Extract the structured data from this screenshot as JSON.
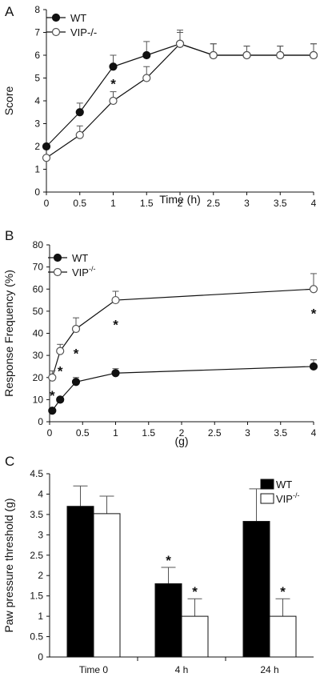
{
  "chart_data": [
    {
      "panel": "A",
      "type": "line",
      "xlabel": "Time (h)",
      "ylabel": "Score",
      "xlim": [
        0,
        4
      ],
      "ylim": [
        0,
        8
      ],
      "x_ticks": [
        "0",
        "0.5",
        "1",
        "1.5",
        "2",
        "2.5",
        "3",
        "3.5",
        "4"
      ],
      "y_ticks": [
        "0",
        "1",
        "2",
        "3",
        "4",
        "5",
        "6",
        "7",
        "8"
      ],
      "legend_position": "top-left",
      "x": [
        0,
        0.5,
        1,
        1.5,
        2,
        2.5,
        3,
        3.5,
        4
      ],
      "series": [
        {
          "name": "WT",
          "marker": "filled-circle",
          "values": [
            2.0,
            3.5,
            5.5,
            6.0,
            6.5,
            6.0,
            6.0,
            6.0,
            6.0
          ],
          "error": [
            0,
            0.4,
            0.5,
            0.6,
            0.6,
            0.5,
            0.4,
            0.4,
            0.5
          ]
        },
        {
          "name": "VIP-/-",
          "marker": "open-circle",
          "values": [
            1.5,
            2.5,
            4.0,
            5.0,
            6.5,
            6.0,
            6.0,
            6.0,
            6.0
          ],
          "error": [
            0,
            0.4,
            0.4,
            0.5,
            0.5,
            0.5,
            0.4,
            0.4,
            0.5
          ]
        }
      ],
      "annotations": [
        {
          "text": "*",
          "x": 1,
          "y": 4.75
        }
      ]
    },
    {
      "panel": "B",
      "type": "line",
      "xlabel": "(g)",
      "ylabel": "Response Frequency (%)",
      "xlim": [
        0,
        4
      ],
      "ylim": [
        0,
        80
      ],
      "x_ticks": [
        "0",
        "0.5",
        "1",
        "1.5",
        "2",
        "2.5",
        "3",
        "3.5",
        "4"
      ],
      "y_ticks": [
        "0",
        "10",
        "20",
        "30",
        "40",
        "50",
        "60",
        "70",
        "80"
      ],
      "legend_position": "top-left",
      "x": [
        0.04,
        0.16,
        0.4,
        1.0,
        4.0
      ],
      "series": [
        {
          "name": "WT",
          "marker": "filled-circle",
          "values": [
            5,
            10,
            18,
            22,
            25
          ],
          "error": [
            1,
            1,
            2,
            2,
            3
          ]
        },
        {
          "name": "VIP",
          "superscript": "-/-",
          "marker": "open-circle",
          "values": [
            20,
            32,
            42,
            55,
            60
          ],
          "error": [
            3,
            3,
            5,
            4,
            7
          ]
        }
      ],
      "annotations": [
        {
          "text": "*",
          "x": 0.04,
          "y": 12
        },
        {
          "text": "*",
          "x": 0.16,
          "y": 23
        },
        {
          "text": "*",
          "x": 0.4,
          "y": 31
        },
        {
          "text": "*",
          "x": 1.0,
          "y": 44
        },
        {
          "text": "*",
          "x": 4.0,
          "y": 49
        }
      ]
    },
    {
      "panel": "C",
      "type": "bar",
      "ylabel": "Paw pressure threshold (g)",
      "ylim": [
        0,
        4.5
      ],
      "y_ticks": [
        "0",
        "0.5",
        "1",
        "1.5",
        "2",
        "2.5",
        "3",
        "3.5",
        "4",
        "4.5"
      ],
      "categories": [
        "Time 0",
        "4 h",
        "24 h"
      ],
      "legend_position": "top-right",
      "series": [
        {
          "name": "WT",
          "fill": "#000000",
          "values": [
            3.7,
            1.8,
            3.33
          ],
          "error": [
            0.5,
            0.4,
            0.8
          ]
        },
        {
          "name": "VIP",
          "superscript": "-/-",
          "fill": "#ffffff",
          "values": [
            3.52,
            1.0,
            1.0
          ],
          "error": [
            0.43,
            0.43,
            0.43
          ]
        }
      ],
      "annotations": [
        {
          "text": "*",
          "category": 1,
          "series": 0
        },
        {
          "text": "*",
          "category": 1,
          "series": 1
        },
        {
          "text": "*",
          "category": 2,
          "series": 1
        }
      ]
    }
  ]
}
